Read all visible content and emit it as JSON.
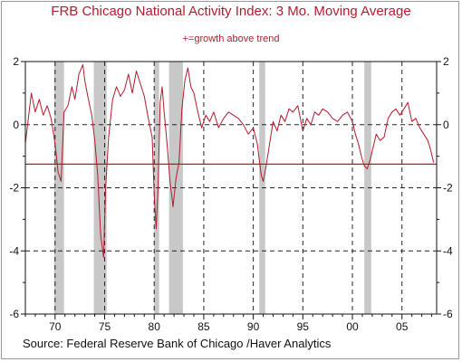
{
  "chart_data": {
    "type": "line",
    "title": "FRB Chicago National Activity Index: 3 Mo. Moving Average",
    "subtitle": "+=growth above trend",
    "source": "Source:  Federal Reserve Bank of Chicago /Haver Analytics",
    "xlim": [
      1967,
      2008.5
    ],
    "ylim": [
      -6,
      2
    ],
    "x_ticks": [
      70,
      75,
      80,
      85,
      90,
      95,
      "00",
      "05"
    ],
    "x_tick_values": [
      1970,
      1975,
      1980,
      1985,
      1990,
      1995,
      2000,
      2005
    ],
    "y_ticks": [
      2,
      0,
      -2,
      -4,
      -6
    ],
    "y_tick_labels": [
      "2",
      "0",
      "-2",
      "-4",
      "-6"
    ],
    "vertical_gridlines_dashed": true,
    "horizontal_gridlines_dashed": [
      0,
      -2,
      -4
    ],
    "reference_line": -1.25,
    "recession_shading": [
      [
        1969.9,
        1970.9
      ],
      [
        1973.9,
        1975.2
      ],
      [
        1980.0,
        1980.5
      ],
      [
        1981.5,
        1982.9
      ],
      [
        1990.6,
        1991.2
      ],
      [
        2001.2,
        2001.9
      ]
    ],
    "series": [
      {
        "color": "#b01c2e",
        "x": [
          1967.0,
          1967.3,
          1967.6,
          1968.0,
          1968.4,
          1968.8,
          1969.2,
          1969.6,
          1970.0,
          1970.3,
          1970.6,
          1970.9,
          1971.3,
          1971.7,
          1972.0,
          1972.4,
          1972.8,
          1973.0,
          1973.3,
          1973.7,
          1974.0,
          1974.3,
          1974.6,
          1974.9,
          1975.1,
          1975.4,
          1975.8,
          1976.2,
          1976.6,
          1977.0,
          1977.4,
          1977.8,
          1978.2,
          1978.6,
          1979.0,
          1979.4,
          1979.8,
          1980.0,
          1980.2,
          1980.4,
          1980.6,
          1980.8,
          1981.0,
          1981.3,
          1981.6,
          1981.9,
          1982.2,
          1982.5,
          1982.8,
          1983.1,
          1983.4,
          1983.7,
          1984.0,
          1984.4,
          1984.8,
          1985.2,
          1985.6,
          1986.0,
          1986.5,
          1987.0,
          1987.5,
          1988.0,
          1988.5,
          1989.0,
          1989.5,
          1990.0,
          1990.4,
          1990.8,
          1991.0,
          1991.3,
          1991.7,
          1992.0,
          1992.4,
          1992.8,
          1993.2,
          1993.6,
          1994.0,
          1994.5,
          1995.0,
          1995.4,
          1995.8,
          1996.2,
          1996.6,
          1997.0,
          1997.5,
          1998.0,
          1998.5,
          1999.0,
          1999.5,
          2000.0,
          2000.3,
          2000.6,
          2000.9,
          2001.2,
          2001.5,
          2001.8,
          2002.1,
          2002.4,
          2002.8,
          2003.2,
          2003.6,
          2004.0,
          2004.4,
          2004.8,
          2005.2,
          2005.6,
          2006.0,
          2006.4,
          2006.8,
          2007.2,
          2007.6,
          2007.9,
          2008.2
        ],
        "values": [
          -0.6,
          0.2,
          1.0,
          0.4,
          0.8,
          0.3,
          0.6,
          0.2,
          -0.6,
          -1.5,
          -1.8,
          0.4,
          0.6,
          1.2,
          0.8,
          1.6,
          1.9,
          1.4,
          0.9,
          0.3,
          -0.5,
          -1.6,
          -3.5,
          -4.2,
          -2.0,
          -0.4,
          0.8,
          1.2,
          0.9,
          1.1,
          1.6,
          1.0,
          1.7,
          1.3,
          0.9,
          0.2,
          -0.4,
          -2.2,
          -3.3,
          -1.9,
          0.7,
          1.2,
          0.4,
          -0.6,
          -1.8,
          -2.6,
          -1.7,
          -1.2,
          0.5,
          1.4,
          1.8,
          1.2,
          1.0,
          0.4,
          -0.1,
          0.3,
          0.1,
          0.4,
          -0.1,
          0.2,
          0.4,
          0.3,
          0.2,
          0.0,
          -0.3,
          -0.1,
          -0.6,
          -1.6,
          -1.8,
          -1.3,
          -0.5,
          0.1,
          -0.2,
          0.3,
          0.1,
          0.5,
          0.4,
          0.6,
          -0.2,
          0.2,
          0.0,
          0.4,
          0.3,
          0.5,
          0.4,
          0.2,
          0.1,
          0.3,
          0.4,
          0.1,
          -0.3,
          -0.6,
          -1.0,
          -1.3,
          -1.4,
          -1.1,
          -0.7,
          -0.3,
          -0.5,
          -0.4,
          0.2,
          0.4,
          0.5,
          0.3,
          0.5,
          0.7,
          0.1,
          0.2,
          -0.1,
          -0.3,
          -0.5,
          -0.8,
          -1.2
        ]
      }
    ]
  },
  "colors": {
    "accent": "#b01c2e",
    "shading": "#c8c8c8",
    "axis": "#111111"
  }
}
